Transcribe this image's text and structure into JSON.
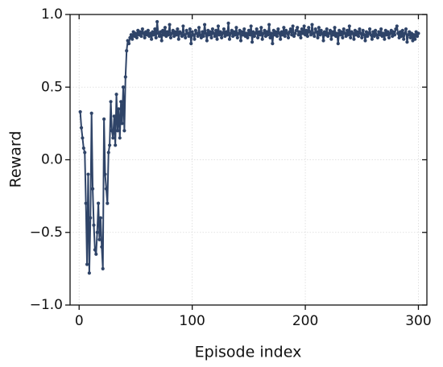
{
  "chart_data": {
    "type": "line",
    "xlabel": "Episode index",
    "ylabel": "Reward",
    "color": "#2f4468",
    "grid": true,
    "xlim": [
      -8,
      307.5
    ],
    "xticks": [
      0,
      100,
      200,
      300
    ],
    "ylim": [
      -1,
      1
    ],
    "yticks": [
      {
        "value": -1,
        "label": "−1.0"
      },
      {
        "value": -0.5,
        "label": "−0.5"
      },
      {
        "value": 0,
        "label": "0.0"
      },
      0.5,
      {
        "value": 1,
        "label": "1.0"
      }
    ],
    "x": [
      1,
      2,
      3,
      4,
      5,
      6,
      7,
      8,
      9,
      10,
      11,
      12,
      13,
      14,
      15,
      16,
      17,
      18,
      19,
      20,
      21,
      22,
      23,
      24,
      25,
      26,
      27,
      28,
      29,
      30,
      31,
      32,
      33,
      34,
      35,
      36,
      37,
      38,
      39,
      40,
      41,
      42,
      43,
      44,
      45,
      46,
      47,
      48,
      49,
      50,
      51,
      52,
      53,
      54,
      55,
      56,
      57,
      58,
      59,
      60,
      61,
      62,
      63,
      64,
      65,
      66,
      67,
      68,
      69,
      70,
      71,
      72,
      73,
      74,
      75,
      76,
      77,
      78,
      79,
      80,
      81,
      82,
      83,
      84,
      85,
      86,
      87,
      88,
      89,
      90,
      91,
      92,
      93,
      94,
      95,
      96,
      97,
      98,
      99,
      100,
      101,
      102,
      103,
      104,
      105,
      106,
      107,
      108,
      109,
      110,
      111,
      112,
      113,
      114,
      115,
      116,
      117,
      118,
      119,
      120,
      121,
      122,
      123,
      124,
      125,
      126,
      127,
      128,
      129,
      130,
      131,
      132,
      133,
      134,
      135,
      136,
      137,
      138,
      139,
      140,
      141,
      142,
      143,
      144,
      145,
      146,
      147,
      148,
      149,
      150,
      151,
      152,
      153,
      154,
      155,
      156,
      157,
      158,
      159,
      160,
      161,
      162,
      163,
      164,
      165,
      166,
      167,
      168,
      169,
      170,
      171,
      172,
      173,
      174,
      175,
      176,
      177,
      178,
      179,
      180,
      181,
      182,
      183,
      184,
      185,
      186,
      187,
      188,
      189,
      190,
      191,
      192,
      193,
      194,
      195,
      196,
      197,
      198,
      199,
      200,
      201,
      202,
      203,
      204,
      205,
      206,
      207,
      208,
      209,
      210,
      211,
      212,
      213,
      214,
      215,
      216,
      217,
      218,
      219,
      220,
      221,
      222,
      223,
      224,
      225,
      226,
      227,
      228,
      229,
      230,
      231,
      232,
      233,
      234,
      235,
      236,
      237,
      238,
      239,
      240,
      241,
      242,
      243,
      244,
      245,
      246,
      247,
      248,
      249,
      250,
      251,
      252,
      253,
      254,
      255,
      256,
      257,
      258,
      259,
      260,
      261,
      262,
      263,
      264,
      265,
      266,
      267,
      268,
      269,
      270,
      271,
      272,
      273,
      274,
      275,
      276,
      277,
      278,
      279,
      280,
      281,
      282,
      283,
      284,
      285,
      286,
      287,
      288,
      289,
      290,
      291,
      292,
      293,
      294,
      295,
      296,
      297,
      298,
      299,
      300
    ],
    "values": [
      0.33,
      0.22,
      0.15,
      0.08,
      0.05,
      -0.3,
      -0.72,
      -0.1,
      -0.78,
      -0.4,
      0.32,
      -0.2,
      -0.45,
      -0.62,
      -0.65,
      -0.5,
      -0.3,
      -0.55,
      -0.4,
      -0.6,
      -0.75,
      0.28,
      -0.1,
      -0.2,
      -0.3,
      0.05,
      0.1,
      0.4,
      0.2,
      0.15,
      0.3,
      0.1,
      0.45,
      0.2,
      0.35,
      0.15,
      0.4,
      0.25,
      0.5,
      0.2,
      0.57,
      0.75,
      0.82,
      0.8,
      0.84,
      0.86,
      0.83,
      0.88,
      0.85,
      0.87,
      0.84,
      0.89,
      0.86,
      0.88,
      0.85,
      0.9,
      0.87,
      0.84,
      0.88,
      0.86,
      0.89,
      0.85,
      0.87,
      0.83,
      0.88,
      0.86,
      0.9,
      0.84,
      0.95,
      0.87,
      0.85,
      0.88,
      0.82,
      0.89,
      0.86,
      0.91,
      0.85,
      0.88,
      0.86,
      0.93,
      0.84,
      0.87,
      0.89,
      0.85,
      0.88,
      0.86,
      0.9,
      0.83,
      0.88,
      0.87,
      0.85,
      0.92,
      0.86,
      0.84,
      0.89,
      0.87,
      0.85,
      0.9,
      0.8,
      0.88,
      0.86,
      0.83,
      0.89,
      0.87,
      0.85,
      0.91,
      0.86,
      0.84,
      0.88,
      0.85,
      0.93,
      0.87,
      0.82,
      0.89,
      0.86,
      0.88,
      0.84,
      0.9,
      0.87,
      0.85,
      0.89,
      0.83,
      0.92,
      0.86,
      0.88,
      0.84,
      0.87,
      0.9,
      0.85,
      0.88,
      0.86,
      0.94,
      0.83,
      0.87,
      0.89,
      0.85,
      0.88,
      0.86,
      0.91,
      0.84,
      0.87,
      0.89,
      0.82,
      0.88,
      0.86,
      0.9,
      0.85,
      0.87,
      0.84,
      0.89,
      0.86,
      0.92,
      0.81,
      0.88,
      0.85,
      0.87,
      0.9,
      0.84,
      0.88,
      0.86,
      0.91,
      0.83,
      0.87,
      0.89,
      0.85,
      0.88,
      0.86,
      0.93,
      0.84,
      0.87,
      0.8,
      0.89,
      0.86,
      0.88,
      0.85,
      0.9,
      0.87,
      0.83,
      0.88,
      0.86,
      0.91,
      0.85,
      0.89,
      0.87,
      0.84,
      0.88,
      0.9,
      0.86,
      0.92,
      0.85,
      0.87,
      0.89,
      0.91,
      0.86,
      0.88,
      0.84,
      0.9,
      0.87,
      0.92,
      0.86,
      0.89,
      0.85,
      0.91,
      0.88,
      0.86,
      0.93,
      0.87,
      0.85,
      0.9,
      0.88,
      0.84,
      0.91,
      0.86,
      0.89,
      0.87,
      0.82,
      0.88,
      0.86,
      0.9,
      0.85,
      0.87,
      0.89,
      0.83,
      0.88,
      0.86,
      0.91,
      0.85,
      0.87,
      0.8,
      0.89,
      0.86,
      0.88,
      0.84,
      0.9,
      0.87,
      0.85,
      0.89,
      0.86,
      0.92,
      0.84,
      0.88,
      0.87,
      0.83,
      0.89,
      0.86,
      0.88,
      0.85,
      0.9,
      0.87,
      0.84,
      0.89,
      0.86,
      0.82,
      0.88,
      0.85,
      0.87,
      0.9,
      0.86,
      0.83,
      0.88,
      0.85,
      0.89,
      0.86,
      0.84,
      0.88,
      0.86,
      0.9,
      0.85,
      0.87,
      0.83,
      0.89,
      0.86,
      0.88,
      0.84,
      0.87,
      0.89,
      0.85,
      0.88,
      0.86,
      0.9,
      0.92,
      0.87,
      0.84,
      0.88,
      0.85,
      0.89,
      0.83,
      0.87,
      0.9,
      0.81,
      0.86,
      0.88,
      0.84,
      0.87,
      0.82,
      0.86,
      0.83,
      0.88,
      0.85,
      0.87
    ]
  }
}
